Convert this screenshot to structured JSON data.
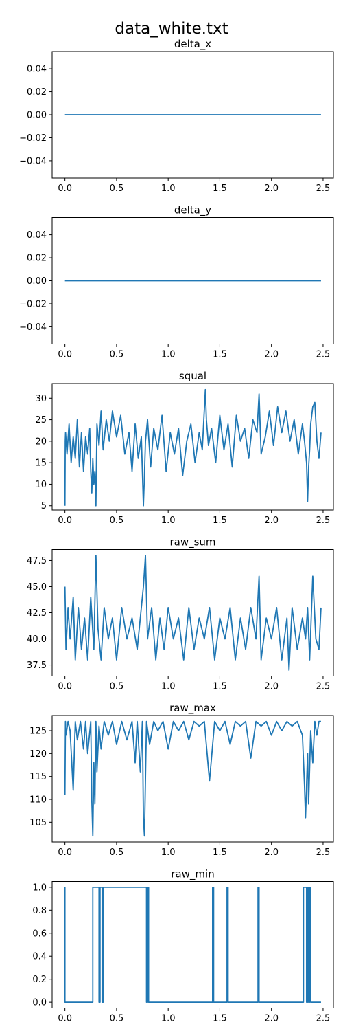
{
  "figure": {
    "title": "data_white.txt",
    "line_color": "#1f77b4"
  },
  "chart_data": [
    {
      "type": "line",
      "title": "delta_x",
      "xlabel": "",
      "ylabel": "",
      "xlim": [
        -0.124,
        2.6
      ],
      "ylim": [
        -0.055,
        0.055
      ],
      "grid": false,
      "xticks": [
        0.0,
        0.5,
        1.0,
        1.5,
        2.0,
        2.5
      ],
      "xtick_labels": [
        "0.0",
        "0.5",
        "1.0",
        "1.5",
        "2.0",
        "2.5"
      ],
      "yticks": [
        0.04,
        0.02,
        0.0,
        -0.02,
        -0.04
      ],
      "ytick_labels": [
        "0.04",
        "0.02",
        "0.00",
        "−0.02",
        "−0.04"
      ],
      "series": [
        {
          "x": [
            0.0,
            0.5,
            1.0,
            1.5,
            2.0,
            2.48
          ],
          "y": [
            0,
            0,
            0,
            0,
            0,
            0
          ]
        }
      ]
    },
    {
      "type": "line",
      "title": "delta_y",
      "xlabel": "",
      "ylabel": "",
      "xlim": [
        -0.124,
        2.6
      ],
      "ylim": [
        -0.055,
        0.055
      ],
      "grid": false,
      "xticks": [
        0.0,
        0.5,
        1.0,
        1.5,
        2.0,
        2.5
      ],
      "xtick_labels": [
        "0.0",
        "0.5",
        "1.0",
        "1.5",
        "2.0",
        "2.5"
      ],
      "yticks": [
        0.04,
        0.02,
        0.0,
        -0.02,
        -0.04
      ],
      "ytick_labels": [
        "0.04",
        "0.02",
        "0.00",
        "−0.02",
        "−0.04"
      ],
      "series": [
        {
          "x": [
            0.0,
            0.5,
            1.0,
            1.5,
            2.0,
            2.48
          ],
          "y": [
            0,
            0,
            0,
            0,
            0,
            0
          ]
        }
      ]
    },
    {
      "type": "line",
      "title": "squal",
      "xlabel": "",
      "ylabel": "",
      "xlim": [
        -0.124,
        2.6
      ],
      "ylim": [
        4,
        33.4
      ],
      "grid": false,
      "xticks": [
        0.0,
        0.5,
        1.0,
        1.5,
        2.0,
        2.5
      ],
      "xtick_labels": [
        "0.0",
        "0.5",
        "1.0",
        "1.5",
        "2.0",
        "2.5"
      ],
      "yticks": [
        30,
        25,
        20,
        15,
        10,
        5
      ],
      "ytick_labels": [
        "30",
        "25",
        "20",
        "15",
        "10",
        "5"
      ],
      "series": [
        {
          "x": [
            0.0,
            0.003,
            0.006,
            0.02,
            0.04,
            0.06,
            0.08,
            0.1,
            0.12,
            0.14,
            0.16,
            0.18,
            0.2,
            0.22,
            0.24,
            0.25,
            0.26,
            0.27,
            0.28,
            0.29,
            0.3,
            0.31,
            0.33,
            0.35,
            0.37,
            0.4,
            0.43,
            0.46,
            0.5,
            0.54,
            0.58,
            0.62,
            0.65,
            0.68,
            0.71,
            0.74,
            0.76,
            0.77,
            0.78,
            0.8,
            0.83,
            0.86,
            0.9,
            0.94,
            0.98,
            1.02,
            1.06,
            1.1,
            1.14,
            1.18,
            1.22,
            1.26,
            1.3,
            1.33,
            1.36,
            1.37,
            1.39,
            1.42,
            1.46,
            1.5,
            1.54,
            1.58,
            1.62,
            1.66,
            1.7,
            1.74,
            1.78,
            1.82,
            1.86,
            1.88,
            1.9,
            1.94,
            1.98,
            2.02,
            2.06,
            2.1,
            2.14,
            2.18,
            2.22,
            2.26,
            2.3,
            2.32,
            2.34,
            2.35,
            2.36,
            2.37,
            2.38,
            2.4,
            2.42,
            2.44,
            2.46,
            2.48
          ],
          "y": [
            5,
            20,
            22,
            17,
            24,
            15,
            21,
            16,
            25,
            14,
            22,
            13,
            21,
            17,
            23,
            13,
            8,
            16,
            10,
            13,
            5,
            24,
            19,
            27,
            18,
            25,
            20,
            27,
            21,
            26,
            17,
            22,
            13,
            24,
            16,
            21,
            5,
            12,
            20,
            25,
            14,
            23,
            18,
            26,
            13,
            22,
            17,
            23,
            12,
            20,
            24,
            15,
            22,
            18,
            32,
            25,
            19,
            23,
            15,
            26,
            18,
            24,
            14,
            26,
            20,
            23,
            16,
            25,
            22,
            31,
            17,
            21,
            27,
            19,
            28,
            22,
            27,
            20,
            25,
            17,
            24,
            20,
            15,
            6,
            14,
            18,
            24,
            28,
            29,
            20,
            16,
            22
          ]
        }
      ]
    },
    {
      "type": "line",
      "title": "raw_sum",
      "xlabel": "",
      "ylabel": "",
      "xlim": [
        -0.124,
        2.6
      ],
      "ylim": [
        36.45,
        48.55
      ],
      "grid": false,
      "xticks": [
        0.0,
        0.5,
        1.0,
        1.5,
        2.0,
        2.5
      ],
      "xtick_labels": [
        "0.0",
        "0.5",
        "1.0",
        "1.5",
        "2.0",
        "2.5"
      ],
      "yticks": [
        47.5,
        45.0,
        42.5,
        40.0,
        37.5
      ],
      "ytick_labels": [
        "47.5",
        "45.0",
        "42.5",
        "40.0",
        "37.5"
      ],
      "series": [
        {
          "x": [
            0.0,
            0.01,
            0.03,
            0.05,
            0.08,
            0.1,
            0.13,
            0.16,
            0.19,
            0.22,
            0.25,
            0.28,
            0.3,
            0.32,
            0.35,
            0.38,
            0.42,
            0.46,
            0.5,
            0.55,
            0.6,
            0.65,
            0.7,
            0.74,
            0.76,
            0.78,
            0.8,
            0.84,
            0.88,
            0.92,
            0.96,
            1.0,
            1.05,
            1.1,
            1.15,
            1.2,
            1.25,
            1.3,
            1.35,
            1.4,
            1.45,
            1.5,
            1.55,
            1.6,
            1.65,
            1.7,
            1.75,
            1.8,
            1.85,
            1.88,
            1.9,
            1.95,
            2.0,
            2.05,
            2.1,
            2.15,
            2.17,
            2.2,
            2.25,
            2.3,
            2.33,
            2.35,
            2.37,
            2.4,
            2.43,
            2.46,
            2.48
          ],
          "y": [
            45,
            39,
            43,
            40,
            44,
            38,
            43,
            39,
            42,
            38,
            44,
            39,
            48,
            41,
            38,
            43,
            40,
            42,
            38,
            43,
            40,
            42,
            39,
            43,
            45,
            48,
            40,
            43,
            38,
            42,
            39,
            43,
            40,
            42,
            38,
            43,
            39,
            42,
            40,
            43,
            38,
            42,
            40,
            43,
            38,
            42,
            39,
            43,
            40,
            46,
            38,
            42,
            40,
            43,
            38,
            42,
            37,
            43,
            39,
            42,
            40,
            43,
            38,
            46,
            40,
            39,
            43
          ]
        }
      ]
    },
    {
      "type": "line",
      "title": "raw_max",
      "xlabel": "",
      "ylabel": "",
      "xlim": [
        -0.124,
        2.6
      ],
      "ylim": [
        100.7,
        128.3
      ],
      "grid": false,
      "xticks": [
        0.0,
        0.5,
        1.0,
        1.5,
        2.0,
        2.5
      ],
      "xtick_labels": [
        "0.0",
        "0.5",
        "1.0",
        "1.5",
        "2.0",
        "2.5"
      ],
      "yticks": [
        125,
        120,
        115,
        110,
        105
      ],
      "ytick_labels": [
        "125",
        "120",
        "115",
        "110",
        "105"
      ],
      "series": [
        {
          "x": [
            0.0,
            0.005,
            0.01,
            0.03,
            0.05,
            0.08,
            0.1,
            0.12,
            0.15,
            0.18,
            0.2,
            0.22,
            0.25,
            0.26,
            0.27,
            0.28,
            0.29,
            0.3,
            0.31,
            0.33,
            0.35,
            0.38,
            0.42,
            0.46,
            0.5,
            0.55,
            0.6,
            0.65,
            0.68,
            0.7,
            0.73,
            0.75,
            0.76,
            0.77,
            0.79,
            0.82,
            0.86,
            0.9,
            0.95,
            1.0,
            1.05,
            1.1,
            1.15,
            1.2,
            1.25,
            1.3,
            1.35,
            1.4,
            1.45,
            1.5,
            1.55,
            1.6,
            1.65,
            1.7,
            1.75,
            1.8,
            1.85,
            1.9,
            1.95,
            2.0,
            2.05,
            2.1,
            2.15,
            2.2,
            2.25,
            2.3,
            2.32,
            2.33,
            2.35,
            2.36,
            2.38,
            2.4,
            2.42,
            2.44,
            2.46,
            2.48
          ],
          "y": [
            111,
            127,
            124,
            127,
            125,
            112,
            127,
            123,
            127,
            121,
            127,
            120,
            127,
            110,
            102,
            118,
            109,
            127,
            116,
            126,
            121,
            127,
            124,
            127,
            122,
            127,
            123,
            127,
            118,
            127,
            116,
            127,
            106,
            102,
            127,
            122,
            127,
            125,
            127,
            121,
            127,
            125,
            127,
            123,
            127,
            126,
            127,
            114,
            127,
            125,
            127,
            122,
            127,
            126,
            127,
            119,
            127,
            126,
            127,
            124,
            127,
            125,
            127,
            126,
            127,
            124,
            113,
            106,
            120,
            109,
            125,
            118,
            127,
            124,
            127,
            127
          ]
        }
      ]
    },
    {
      "type": "line",
      "title": "raw_min",
      "xlabel": "",
      "ylabel": "",
      "xlim": [
        -0.124,
        2.6
      ],
      "ylim": [
        -0.05,
        1.05
      ],
      "grid": false,
      "xticks": [
        0.0,
        0.5,
        1.0,
        1.5,
        2.0,
        2.5
      ],
      "xtick_labels": [
        "0.0",
        "0.5",
        "1.0",
        "1.5",
        "2.0",
        "2.5"
      ],
      "yticks": [
        1.0,
        0.8,
        0.6,
        0.4,
        0.2,
        0.0
      ],
      "ytick_labels": [
        "1.0",
        "0.8",
        "0.6",
        "0.4",
        "0.2",
        "0.0"
      ],
      "series": [
        {
          "x": [
            0.0,
            0.0,
            0.0,
            0.27,
            0.27,
            0.33,
            0.33,
            0.34,
            0.34,
            0.36,
            0.36,
            0.37,
            0.37,
            0.75,
            0.75,
            0.79,
            0.79,
            0.8,
            0.8,
            0.81,
            0.81,
            0.83,
            0.83,
            1.43,
            1.43,
            1.44,
            1.44,
            1.57,
            1.57,
            1.58,
            1.58,
            1.87,
            1.87,
            1.88,
            1.88,
            2.31,
            2.31,
            2.34,
            2.34,
            2.35,
            2.35,
            2.36,
            2.36,
            2.37,
            2.37,
            2.38,
            2.38,
            2.39,
            2.39,
            2.48
          ],
          "y": [
            1,
            1,
            0,
            0,
            1,
            1,
            0,
            0,
            1,
            1,
            0,
            0,
            1,
            1,
            1,
            1,
            0,
            0,
            1,
            1,
            0,
            0,
            0,
            0,
            1,
            1,
            0,
            0,
            1,
            1,
            0,
            0,
            1,
            1,
            0,
            0,
            1,
            1,
            0,
            0,
            1,
            1,
            0,
            0,
            1,
            1,
            0,
            0,
            0,
            0
          ]
        }
      ]
    }
  ]
}
